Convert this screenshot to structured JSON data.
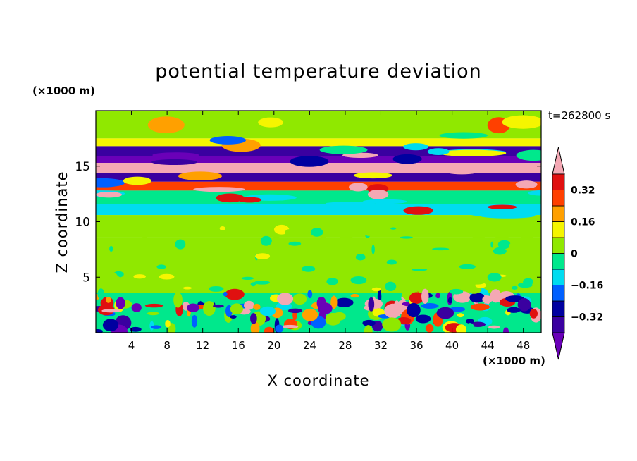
{
  "chart_data": {
    "type": "heatmap",
    "title": "potential temperature deviation",
    "xlabel": "X coordinate",
    "ylabel": "Z coordinate",
    "x_unit": "(×1000 m)",
    "y_unit": "(×1000 m)",
    "time_label": "t=262800 s",
    "xlim": [
      0,
      50
    ],
    "ylim": [
      0,
      20
    ],
    "x_ticks": [
      "4",
      "8",
      "12",
      "16",
      "20",
      "24",
      "28",
      "32",
      "36",
      "40",
      "44",
      "48"
    ],
    "x_tick_values": [
      4,
      8,
      12,
      16,
      20,
      24,
      28,
      32,
      36,
      40,
      44,
      48
    ],
    "y_ticks": [
      "5",
      "10",
      "15"
    ],
    "y_tick_values": [
      5,
      10,
      15
    ],
    "colorbar": {
      "labels": [
        "0.32",
        "0.16",
        "0",
        "−0.16",
        "−0.32"
      ],
      "label_values": [
        0.32,
        0.16,
        0,
        -0.16,
        -0.32
      ],
      "levels": [
        -0.4,
        -0.32,
        -0.24,
        -0.16,
        -0.08,
        0,
        0.08,
        0.16,
        0.24,
        0.32,
        0.4
      ],
      "colors": [
        "#6a00b8",
        "#3a00a0",
        "#0000a0",
        "#0060ff",
        "#00dcf0",
        "#00e88c",
        "#90e800",
        "#f5f500",
        "#ffa000",
        "#ff4000",
        "#e01010",
        "#f4a8b4"
      ],
      "extend": "both"
    },
    "bands": [
      {
        "z": [
          17.5,
          20
        ],
        "value": 0.04
      },
      {
        "z": [
          16.8,
          17.5
        ],
        "value": 0.12
      },
      {
        "z": [
          15.9,
          16.8
        ],
        "value": -0.36
      },
      {
        "z": [
          15.3,
          15.9
        ],
        "value": -0.44
      },
      {
        "z": [
          14.4,
          15.3
        ],
        "value": 0.44
      },
      {
        "z": [
          13.6,
          14.4
        ],
        "value": -0.36
      },
      {
        "z": [
          12.8,
          13.6
        ],
        "value": 0.3
      },
      {
        "z": [
          11.6,
          12.8
        ],
        "value": -0.05
      },
      {
        "z": [
          10.6,
          11.6
        ],
        "value": -0.12
      },
      {
        "z": [
          8.6,
          10.6
        ],
        "value": 0.03
      },
      {
        "z": [
          3.6,
          8.6
        ],
        "value": 0.05
      },
      {
        "z": [
          0,
          3.6
        ],
        "value": -0.02
      }
    ]
  }
}
